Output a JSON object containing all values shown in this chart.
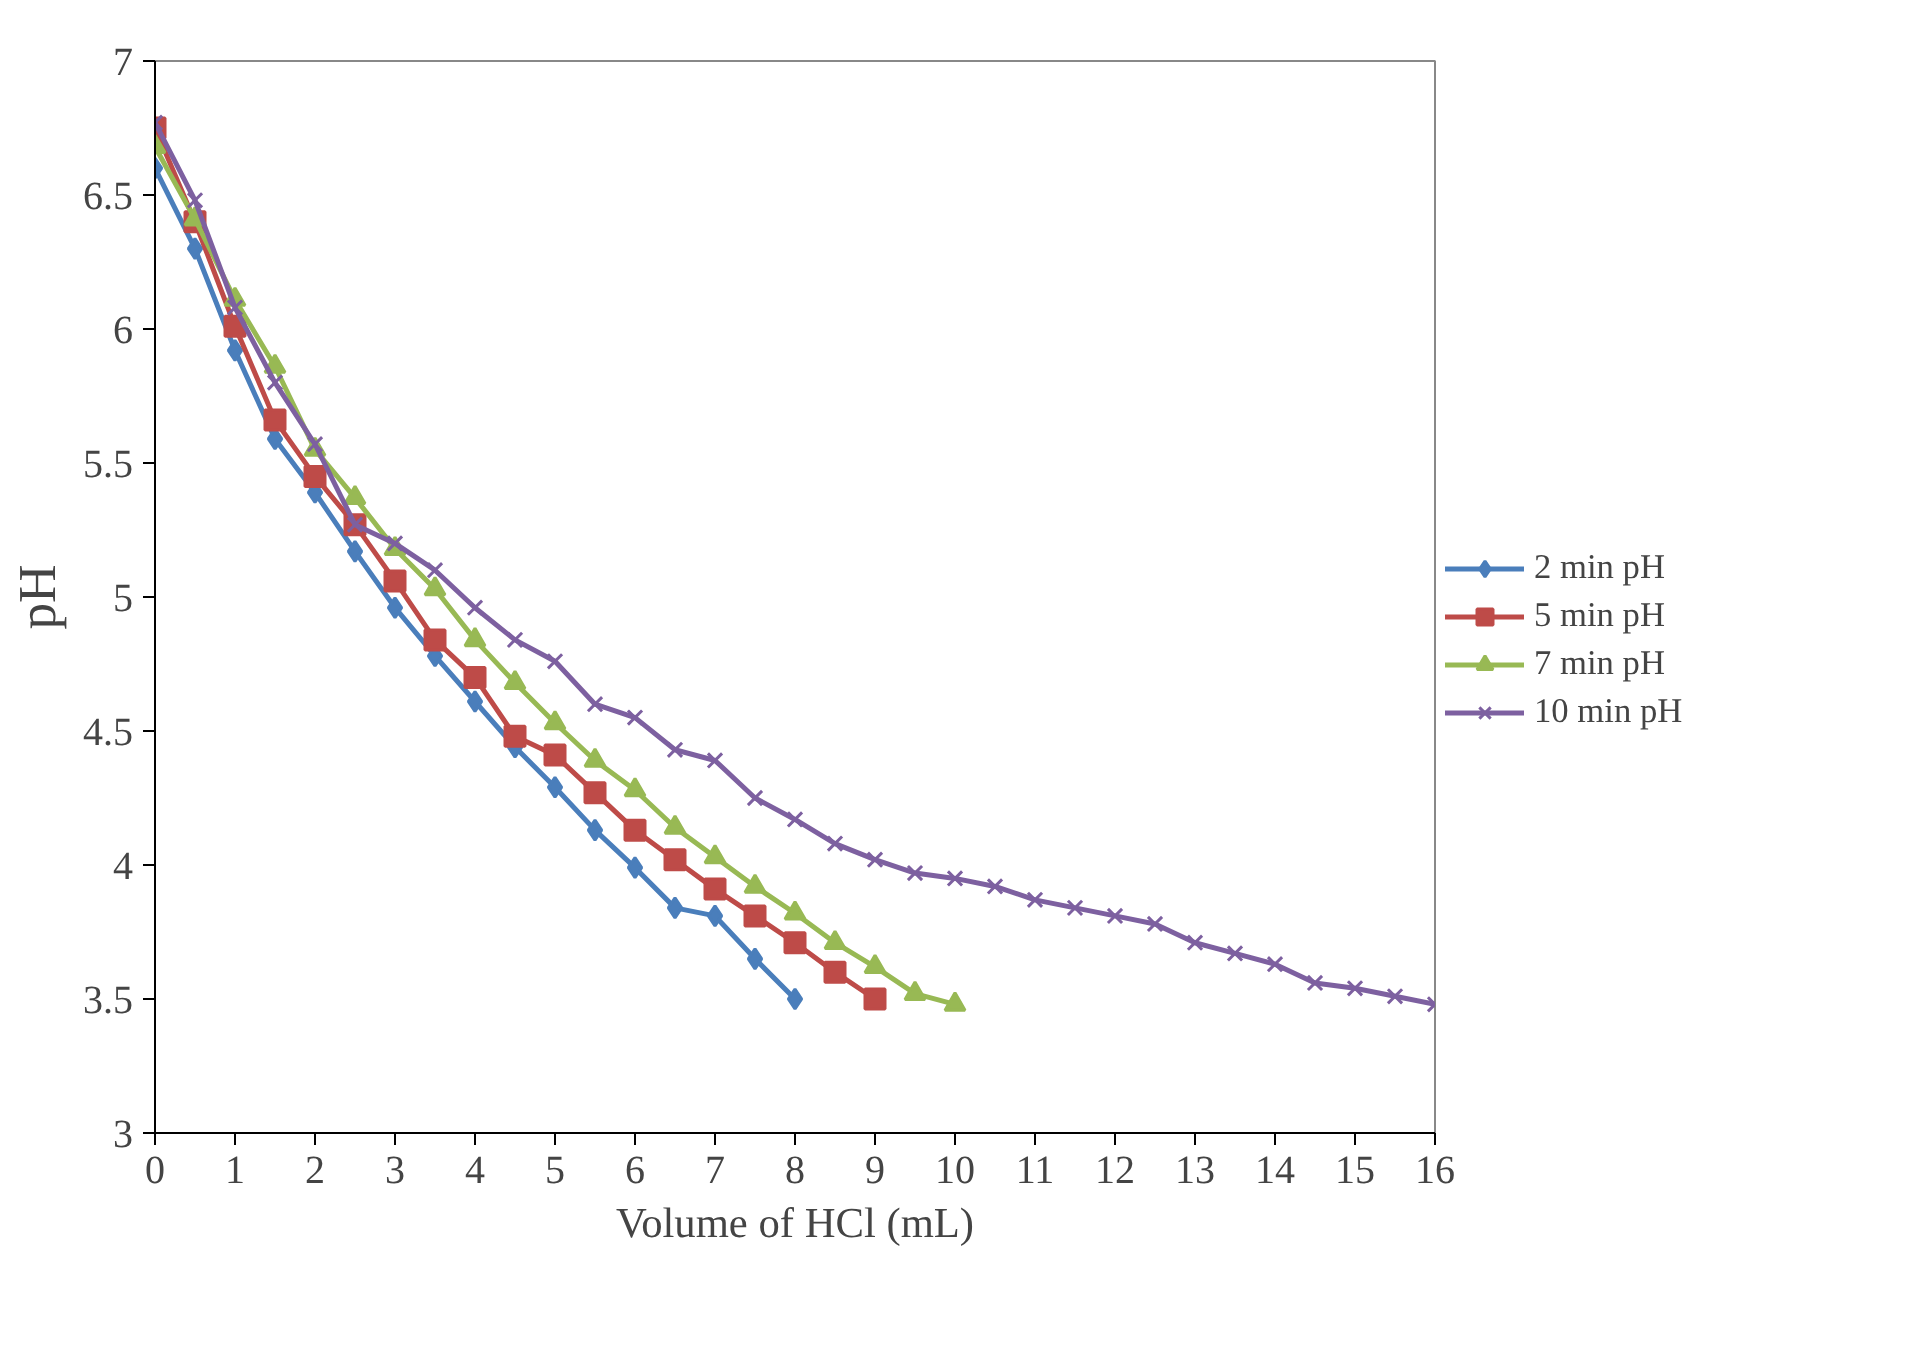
{
  "chart_data": {
    "type": "line",
    "xlabel": "Volume of HCl (mL)",
    "ylabel": "pH",
    "xlim": [
      0,
      16
    ],
    "xticks": [
      0,
      1,
      2,
      3,
      4,
      5,
      6,
      7,
      8,
      9,
      10,
      11,
      12,
      13,
      14,
      15,
      16
    ],
    "ylim": [
      3,
      7
    ],
    "yticks": [
      3,
      3.5,
      4,
      4.5,
      5,
      5.5,
      6,
      6.5,
      7
    ],
    "grid": false,
    "legend": "right",
    "line_style": "solid",
    "series": [
      {
        "name": "2 min pH",
        "color": "#4a7ebb",
        "marker": "diamond",
        "x": [
          0,
          0.5,
          1,
          1.5,
          2,
          2.5,
          3,
          3.5,
          4,
          4.5,
          5,
          5.5,
          6,
          6.5,
          7,
          7.5,
          8
        ],
        "values": [
          6.6,
          6.3,
          5.92,
          5.59,
          5.39,
          5.17,
          4.96,
          4.78,
          4.61,
          4.44,
          4.29,
          4.13,
          3.99,
          3.84,
          3.81,
          3.65,
          3.5
        ]
      },
      {
        "name": "5 min pH",
        "color": "#be4b48",
        "marker": "square",
        "x": [
          0,
          0.5,
          1,
          1.5,
          2,
          2.5,
          3,
          3.5,
          4,
          4.5,
          5,
          5.5,
          6,
          6.5,
          7,
          7.5,
          8,
          8.5,
          9
        ],
        "values": [
          6.75,
          6.4,
          6.01,
          5.66,
          5.45,
          5.27,
          5.06,
          4.84,
          4.7,
          4.48,
          4.41,
          4.27,
          4.13,
          4.02,
          3.91,
          3.81,
          3.71,
          3.6,
          3.5
        ]
      },
      {
        "name": "7 min pH",
        "color": "#98b954",
        "marker": "triangle",
        "x": [
          0,
          0.5,
          1,
          1.5,
          2,
          2.5,
          3,
          3.5,
          4,
          4.5,
          5,
          5.5,
          6,
          6.5,
          7,
          7.5,
          8,
          8.5,
          9,
          9.5,
          10
        ],
        "values": [
          6.68,
          6.41,
          6.11,
          5.86,
          5.55,
          5.37,
          5.18,
          5.03,
          4.84,
          4.68,
          4.53,
          4.39,
          4.28,
          4.14,
          4.03,
          3.92,
          3.82,
          3.71,
          3.62,
          3.52,
          3.48
        ]
      },
      {
        "name": "10 min pH",
        "color": "#7d60a0",
        "marker": "cross",
        "x": [
          0,
          0.5,
          1,
          1.5,
          2,
          2.5,
          3,
          3.5,
          4,
          4.5,
          5,
          5.5,
          6,
          6.5,
          7,
          7.5,
          8,
          8.5,
          9,
          9.5,
          10,
          10.5,
          11,
          11.5,
          12,
          12.5,
          13,
          13.5,
          14,
          14.5,
          15,
          15.5,
          16
        ],
        "values": [
          6.77,
          6.48,
          6.08,
          5.8,
          5.57,
          5.27,
          5.2,
          5.1,
          4.96,
          4.84,
          4.76,
          4.6,
          4.55,
          4.43,
          4.39,
          4.25,
          4.17,
          4.08,
          4.02,
          3.97,
          3.95,
          3.92,
          3.87,
          3.84,
          3.81,
          3.78,
          3.71,
          3.67,
          3.63,
          3.56,
          3.54,
          3.51,
          3.48
        ]
      }
    ]
  }
}
